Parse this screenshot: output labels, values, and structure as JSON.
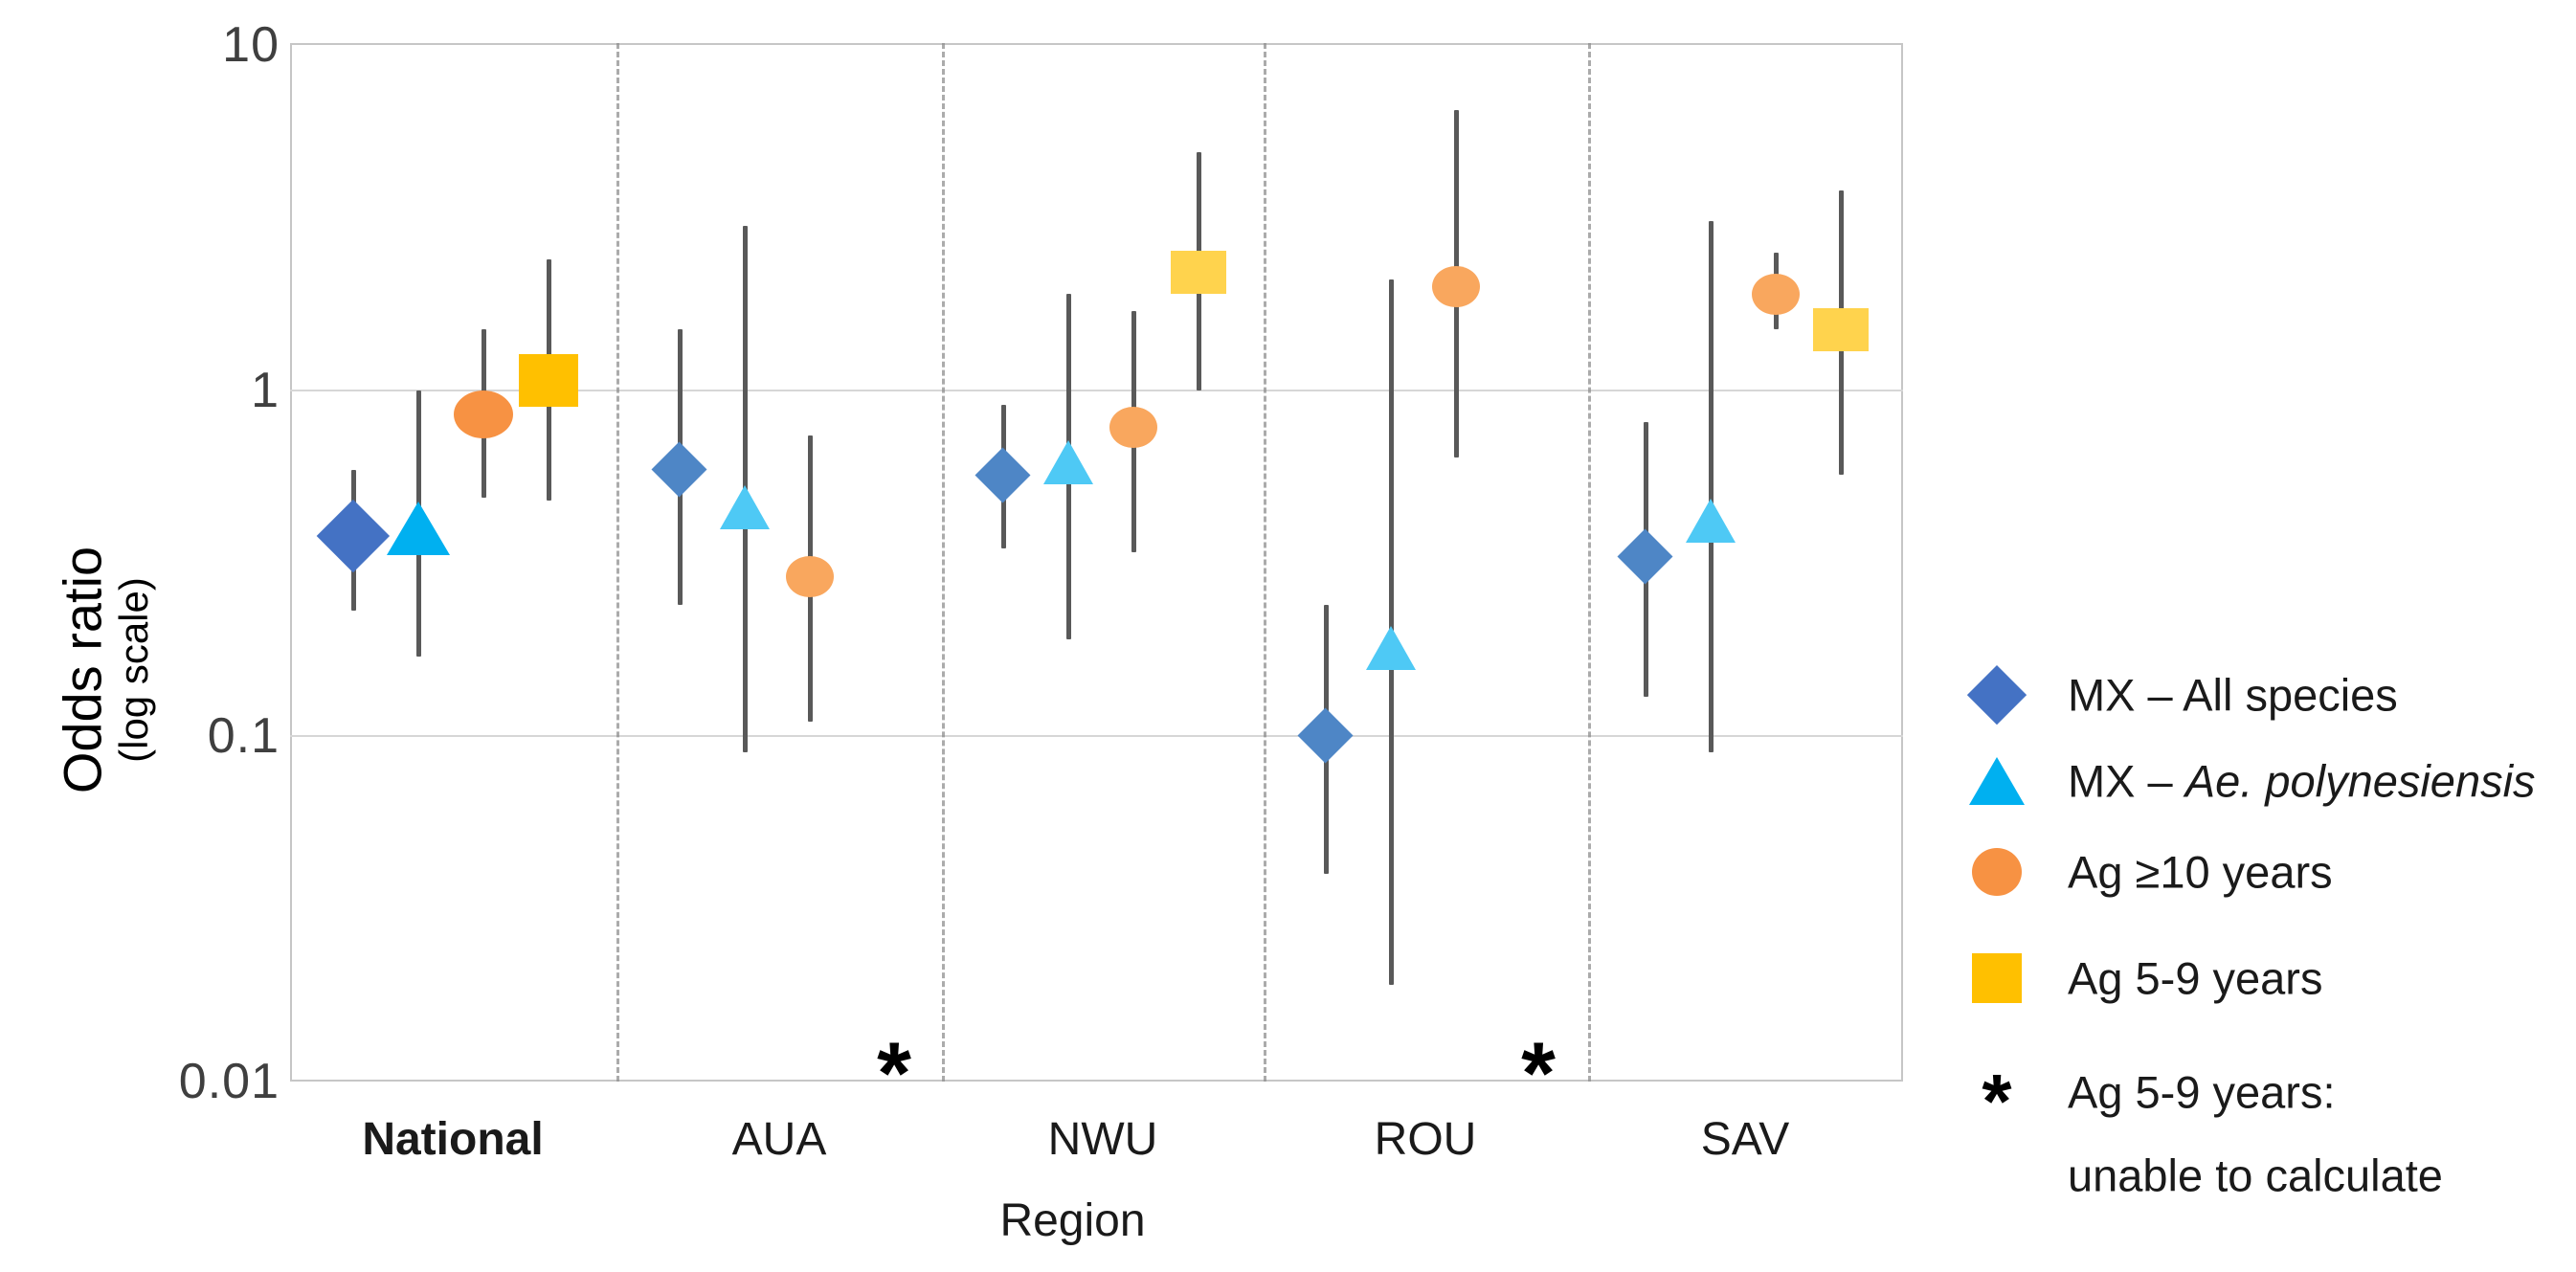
{
  "y_axis": {
    "title": "Odds ratio",
    "subtitle": "(log scale)",
    "scale": "log10",
    "ticks": [
      "10",
      "1",
      "0.1",
      "0.01"
    ],
    "tick_values": [
      10,
      1,
      0.1,
      0.01
    ]
  },
  "x_axis": {
    "title": "Region"
  },
  "legend": {
    "items": [
      {
        "marker": "diamond",
        "label_prefix": "MX – All species",
        "label_italic": ""
      },
      {
        "marker": "triangle",
        "label_prefix": "MX – ",
        "label_italic": "Ae. polynesiensis"
      },
      {
        "marker": "ellipse",
        "label_prefix": "Ag ≥10 years",
        "label_italic": ""
      },
      {
        "marker": "square",
        "label_prefix": "Ag 5-9 years",
        "label_italic": ""
      },
      {
        "marker": "asterisk",
        "label_line1": "Ag 5-9 years:",
        "label_line2": "unable to calculate"
      }
    ]
  },
  "colors": {
    "series_national": {
      "diamond": "#4472c4",
      "triangle": "#00b0f0",
      "ellipse": "#f79243",
      "square": "#ffc000"
    },
    "series_regional": {
      "diamond": "#4e86c6",
      "triangle": "#4ec9f5",
      "ellipse": "#f9a75e",
      "square": "#ffd34d"
    },
    "error_bar": "#595959",
    "gridline": "#d6d6d6",
    "divider": "#8f8f8f",
    "asterisk": "#000000"
  },
  "chart_data": {
    "type": "scatter",
    "subtype": "point-estimates-with-95CI-on-log-scale",
    "title": "",
    "xlabel": "Region",
    "ylabel": "Odds ratio (log scale)",
    "ylim": [
      0.01,
      10
    ],
    "grid": "horizontal-at-decades",
    "legend_position": "right",
    "categories": [
      {
        "label": "National",
        "bold": true
      },
      {
        "label": "AUA",
        "bold": false
      },
      {
        "label": "NWU",
        "bold": false
      },
      {
        "label": "ROU",
        "bold": false
      },
      {
        "label": "SAV",
        "bold": false
      }
    ],
    "series": [
      {
        "name": "MX – All species",
        "marker": "diamond",
        "points": [
          {
            "region": "National",
            "or": 0.38,
            "ci_low": 0.23,
            "ci_high": 0.59
          },
          {
            "region": "AUA",
            "or": 0.59,
            "ci_low": 0.24,
            "ci_high": 1.5
          },
          {
            "region": "NWU",
            "or": 0.57,
            "ci_low": 0.35,
            "ci_high": 0.91
          },
          {
            "region": "ROU",
            "or": 0.1,
            "ci_low": 0.04,
            "ci_high": 0.24
          },
          {
            "region": "SAV",
            "or": 0.33,
            "ci_low": 0.13,
            "ci_high": 0.81
          }
        ]
      },
      {
        "name": "MX – Ae. polynesiensis",
        "marker": "triangle",
        "points": [
          {
            "region": "National",
            "or": 0.4,
            "ci_low": 0.17,
            "ci_high": 1.0
          },
          {
            "region": "AUA",
            "or": 0.46,
            "ci_low": 0.09,
            "ci_high": 3.0
          },
          {
            "region": "NWU",
            "or": 0.62,
            "ci_low": 0.19,
            "ci_high": 1.9
          },
          {
            "region": "ROU",
            "or": 0.18,
            "ci_low": 0.019,
            "ci_high": 2.1
          },
          {
            "region": "SAV",
            "or": 0.42,
            "ci_low": 0.09,
            "ci_high": 3.1
          }
        ]
      },
      {
        "name": "Ag ≥10 years",
        "marker": "ellipse",
        "points": [
          {
            "region": "National",
            "or": 0.85,
            "ci_low": 0.49,
            "ci_high": 1.5
          },
          {
            "region": "AUA",
            "or": 0.29,
            "ci_low": 0.11,
            "ci_high": 0.74
          },
          {
            "region": "NWU",
            "or": 0.78,
            "ci_low": 0.34,
            "ci_high": 1.7
          },
          {
            "region": "ROU",
            "or": 2.0,
            "ci_low": 0.64,
            "ci_high": 6.5
          },
          {
            "region": "SAV",
            "or": 1.9,
            "ci_low": 1.5,
            "ci_high": 2.5
          }
        ]
      },
      {
        "name": "Ag 5-9 years",
        "marker": "square",
        "points": [
          {
            "region": "National",
            "or": 1.07,
            "ci_low": 0.48,
            "ci_high": 2.4
          },
          {
            "region": "AUA",
            "or": null,
            "ci_low": null,
            "ci_high": null,
            "note": "unable to calculate"
          },
          {
            "region": "NWU",
            "or": 2.2,
            "ci_low": 1.0,
            "ci_high": 4.9
          },
          {
            "region": "ROU",
            "or": null,
            "ci_low": null,
            "ci_high": null,
            "note": "unable to calculate"
          },
          {
            "region": "SAV",
            "or": 1.5,
            "ci_low": 0.57,
            "ci_high": 3.8
          }
        ]
      }
    ],
    "annotations": {
      "asterisk_symbol": "*",
      "asterisk_regions": [
        "AUA",
        "ROU"
      ],
      "asterisk_meaning": "Ag 5-9 years: unable to calculate"
    }
  }
}
